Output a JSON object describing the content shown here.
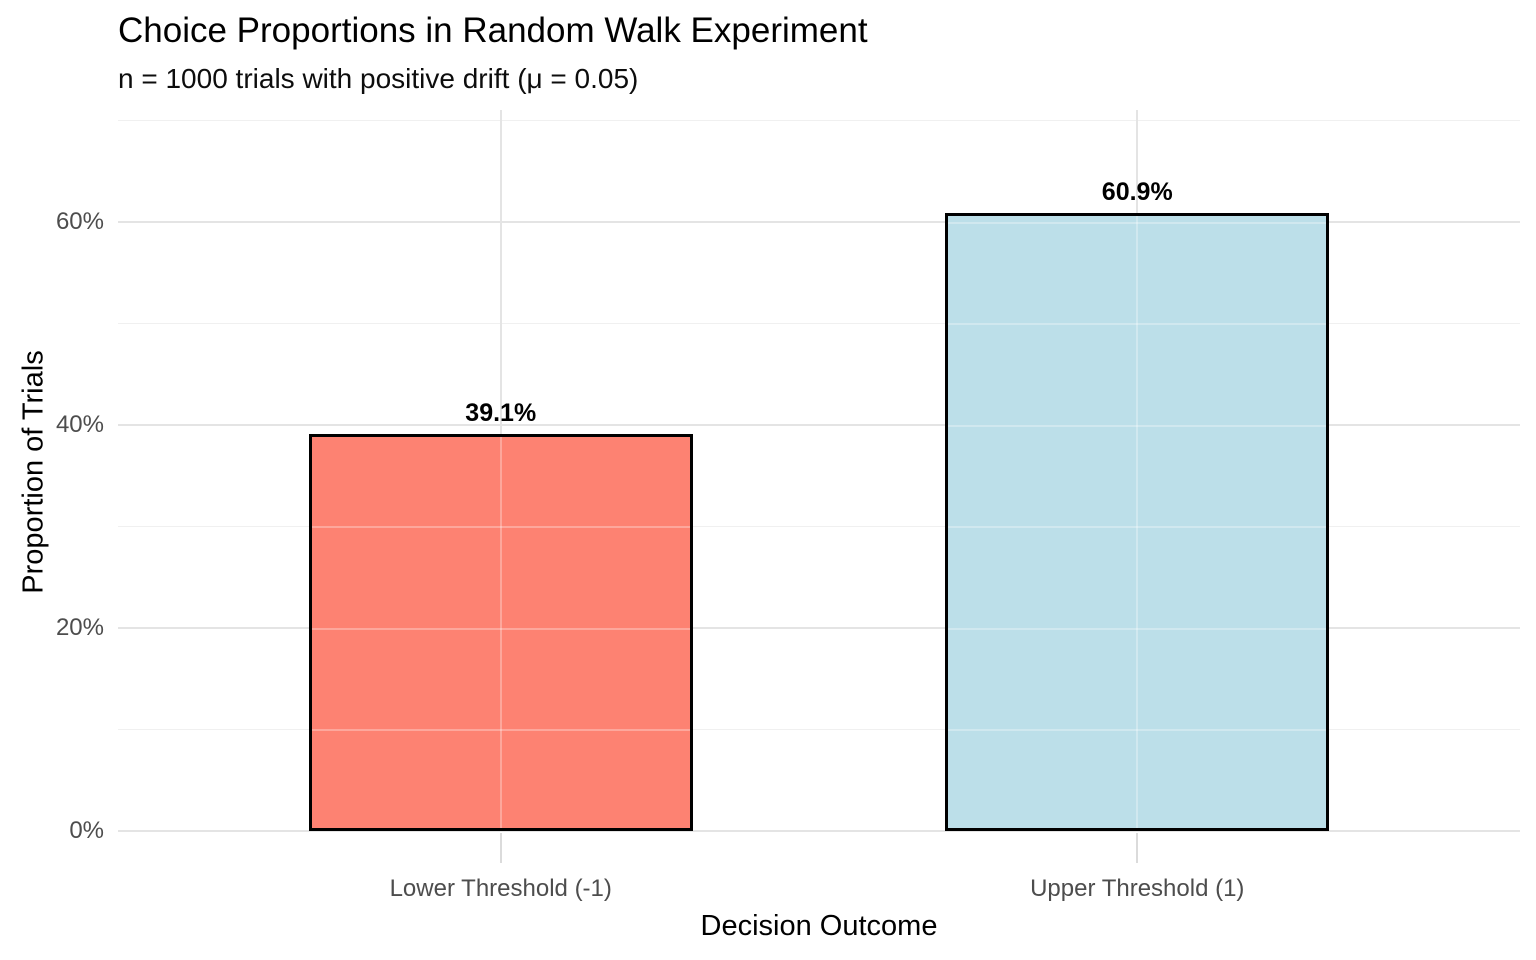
{
  "chart_data": {
    "type": "bar",
    "title": "Choice Proportions in Random Walk Experiment",
    "subtitle": "n = 1000 trials with positive drift (μ = 0.05)",
    "xlabel": "Decision Outcome",
    "ylabel": "Proportion of Trials",
    "categories": [
      "Lower Threshold (-1)",
      "Upper Threshold (1)"
    ],
    "values": [
      39.1,
      60.9
    ],
    "value_labels": [
      "39.1%",
      "60.9%"
    ],
    "unit": "percent of trials",
    "bar_fill_colors": [
      "#FD8272",
      "#BCDFE9"
    ],
    "bar_border_color": "#000000",
    "ylim": [
      0,
      71
    ],
    "yticks": {
      "values": [
        0,
        20,
        40,
        60
      ],
      "labels": [
        "0%",
        "20%",
        "40%",
        "60%"
      ]
    },
    "minor_gridline_values": [
      10,
      30,
      50,
      70
    ],
    "grid": "horizontal major + minor lines; vertical line at each category center",
    "legend_position": "none",
    "styles": {
      "background": "#FFFFFF",
      "major_grid_color": "#E4E4E4",
      "minor_grid_color": "#F0F0F0",
      "tick_mark_color": "#DBDBDB",
      "tick_label_color": "#4D4D4D",
      "text_color": "#000000",
      "value_label_color": "#000000"
    }
  }
}
